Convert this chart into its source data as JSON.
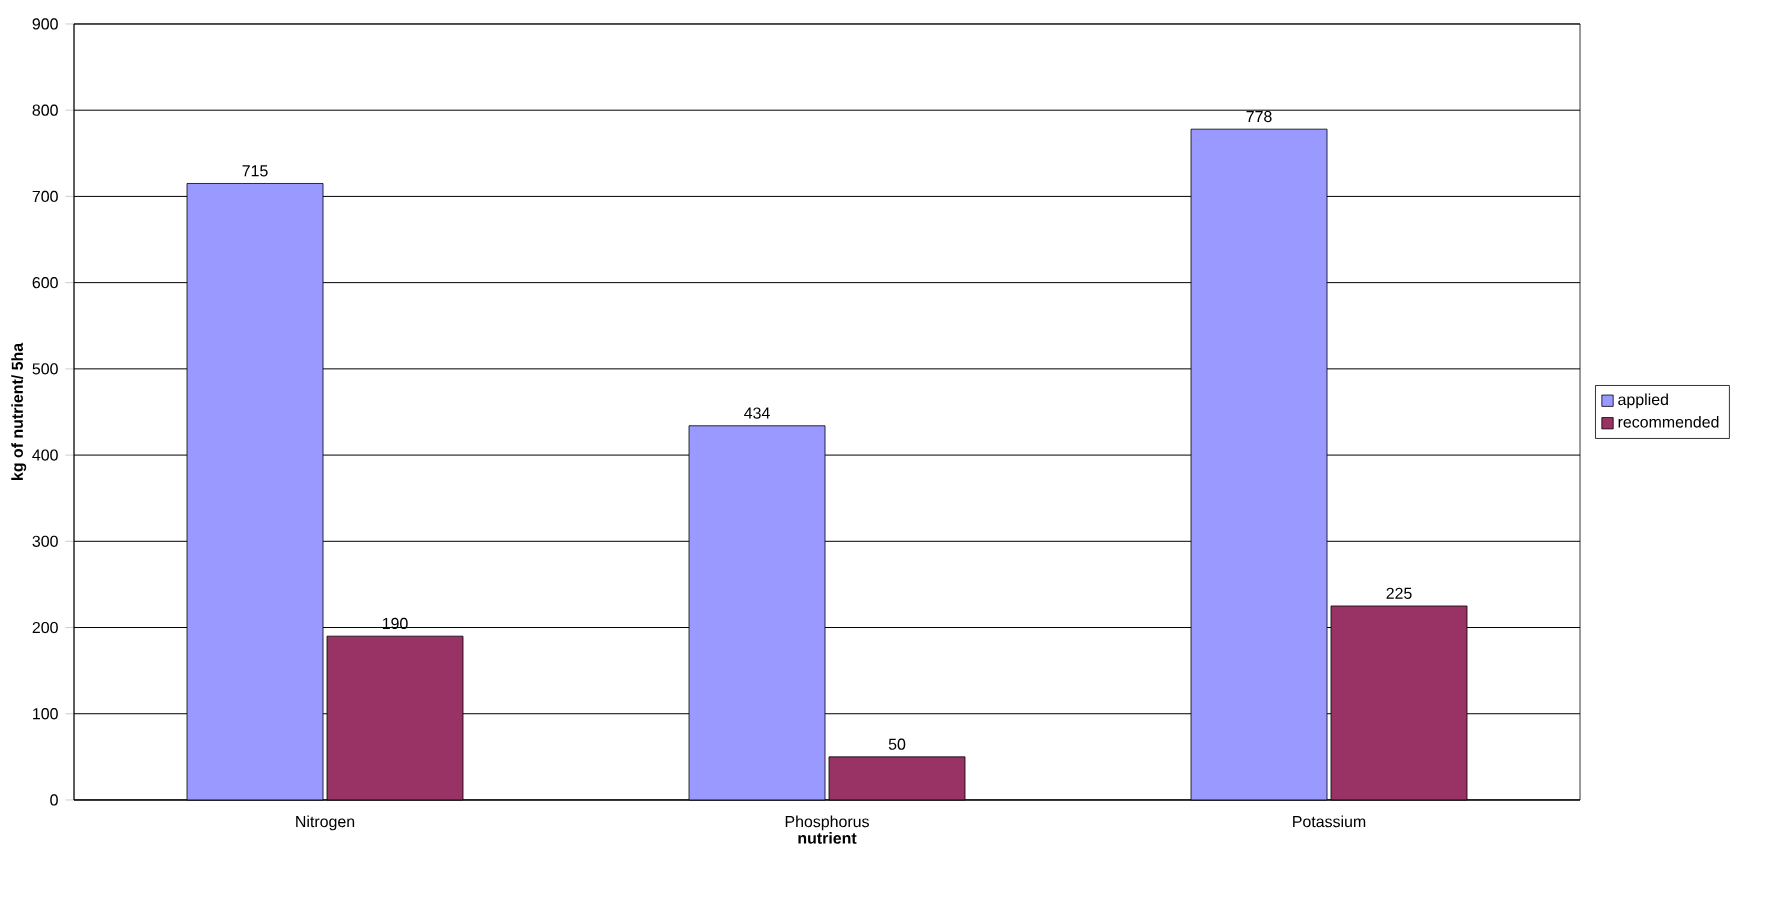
{
  "chart_data": {
    "type": "bar",
    "xlabel": "nutrient",
    "ylabel": "kg of nutrient/ 5ha",
    "categories": [
      "Nitrogen",
      "Phosphorus",
      "Potassium"
    ],
    "series": [
      {
        "name": "applied",
        "color": "#9999ff",
        "values": [
          715,
          434,
          778
        ]
      },
      {
        "name": "recommended",
        "color": "#993366",
        "values": [
          190,
          50,
          225
        ]
      }
    ],
    "ylim": [
      0,
      900
    ],
    "yticks": [
      0,
      100,
      200,
      300,
      400,
      500,
      600,
      700,
      800,
      900
    ],
    "grid": "y",
    "legend": "right",
    "data_labels": true
  }
}
